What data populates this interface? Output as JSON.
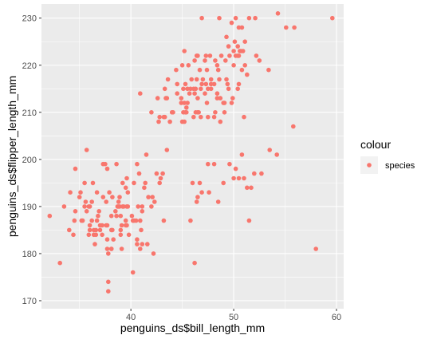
{
  "chart_data": {
    "type": "scatter",
    "xlabel": "penguins_ds$bill_length_mm",
    "ylabel": "penguins_ds$flipper_length_mm",
    "xlim": [
      31.3,
      60.7
    ],
    "ylim": [
      168.3,
      233.0
    ],
    "x_ticks": [
      "40",
      "50",
      "60"
    ],
    "y_ticks": [
      "170",
      "180",
      "190",
      "200",
      "210",
      "220",
      "230"
    ],
    "x_tick_values": [
      40,
      50,
      60
    ],
    "y_tick_values": [
      170,
      180,
      190,
      200,
      210,
      220,
      230
    ],
    "grid": true,
    "legend": {
      "title": "colour",
      "position": "right",
      "entries": [
        {
          "label": "species",
          "color": "#F8766D"
        }
      ]
    },
    "colors": {
      "panel": "#EBEBEB",
      "grid": "#FFFFFF",
      "point": "#F8766D"
    },
    "points": [
      [
        32.1,
        188
      ],
      [
        33.1,
        178
      ],
      [
        33.5,
        190
      ],
      [
        34.0,
        185
      ],
      [
        34.1,
        193
      ],
      [
        34.4,
        184
      ],
      [
        34.5,
        187
      ],
      [
        34.6,
        198
      ],
      [
        34.6,
        189
      ],
      [
        35.0,
        192
      ],
      [
        35.1,
        193
      ],
      [
        35.2,
        187
      ],
      [
        35.3,
        187
      ],
      [
        35.5,
        190
      ],
      [
        35.5,
        195
      ],
      [
        35.6,
        191
      ],
      [
        35.7,
        202
      ],
      [
        35.7,
        189
      ],
      [
        35.9,
        190
      ],
      [
        35.9,
        184
      ],
      [
        36.0,
        185
      ],
      [
        36.0,
        186
      ],
      [
        36.0,
        190
      ],
      [
        36.2,
        187
      ],
      [
        36.2,
        191
      ],
      [
        36.3,
        195
      ],
      [
        36.4,
        184
      ],
      [
        36.4,
        185
      ],
      [
        36.5,
        182
      ],
      [
        36.6,
        185
      ],
      [
        36.6,
        184
      ],
      [
        36.7,
        187
      ],
      [
        36.7,
        193
      ],
      [
        36.8,
        188
      ],
      [
        36.9,
        189
      ],
      [
        37.0,
        185
      ],
      [
        37.0,
        186
      ],
      [
        37.2,
        184
      ],
      [
        37.2,
        186
      ],
      [
        37.3,
        199
      ],
      [
        37.3,
        192
      ],
      [
        37.5,
        199
      ],
      [
        37.6,
        191
      ],
      [
        37.6,
        186
      ],
      [
        37.7,
        198
      ],
      [
        37.7,
        183
      ],
      [
        37.7,
        181
      ],
      [
        37.7,
        186
      ],
      [
        37.8,
        174
      ],
      [
        37.8,
        180
      ],
      [
        37.8,
        172
      ],
      [
        37.9,
        193
      ],
      [
        38.1,
        181
      ],
      [
        38.1,
        185
      ],
      [
        38.1,
        188
      ],
      [
        38.1,
        181
      ],
      [
        38.2,
        185
      ],
      [
        38.2,
        192
      ],
      [
        38.3,
        183
      ],
      [
        38.5,
        189
      ],
      [
        38.6,
        188
      ],
      [
        38.6,
        199
      ],
      [
        38.7,
        190
      ],
      [
        38.8,
        190
      ],
      [
        38.8,
        191
      ],
      [
        38.9,
        192
      ],
      [
        38.9,
        190
      ],
      [
        39.0,
        185
      ],
      [
        39.0,
        188
      ],
      [
        39.0,
        184
      ],
      [
        39.1,
        181
      ],
      [
        39.1,
        186
      ],
      [
        39.2,
        190
      ],
      [
        39.2,
        195
      ],
      [
        39.3,
        190
      ],
      [
        39.5,
        187
      ],
      [
        39.5,
        186
      ],
      [
        39.5,
        194
      ],
      [
        39.6,
        186
      ],
      [
        39.6,
        190
      ],
      [
        39.6,
        196
      ],
      [
        39.7,
        190
      ],
      [
        39.7,
        193
      ],
      [
        39.8,
        184
      ],
      [
        40.1,
        188
      ],
      [
        40.2,
        176
      ],
      [
        40.2,
        187
      ],
      [
        40.3,
        195
      ],
      [
        40.3,
        187
      ],
      [
        40.5,
        187
      ],
      [
        40.6,
        182
      ],
      [
        40.6,
        183
      ],
      [
        40.6,
        199
      ],
      [
        40.7,
        190
      ],
      [
        40.8,
        197
      ],
      [
        40.9,
        187
      ],
      [
        40.9,
        181
      ],
      [
        41.0,
        185
      ],
      [
        41.1,
        182
      ],
      [
        41.1,
        189
      ],
      [
        41.1,
        190
      ],
      [
        41.3,
        194
      ],
      [
        41.4,
        195
      ],
      [
        41.5,
        201
      ],
      [
        41.6,
        182
      ],
      [
        41.7,
        192
      ],
      [
        42.0,
        190
      ],
      [
        42.1,
        192
      ],
      [
        42.2,
        180
      ],
      [
        42.3,
        191
      ],
      [
        42.5,
        197
      ],
      [
        42.8,
        195
      ],
      [
        42.9,
        196
      ],
      [
        43.1,
        197
      ],
      [
        43.2,
        187
      ],
      [
        43.5,
        202
      ],
      [
        44.1,
        210
      ],
      [
        45.8,
        187
      ],
      [
        46.0,
        195
      ],
      [
        46.2,
        178
      ],
      [
        46.4,
        191
      ],
      [
        46.5,
        192
      ],
      [
        46.7,
        195
      ],
      [
        46.9,
        193
      ],
      [
        47.5,
        199
      ],
      [
        47.6,
        193
      ],
      [
        48.1,
        199
      ],
      [
        48.5,
        191
      ],
      [
        49.0,
        195
      ],
      [
        49.6,
        199
      ],
      [
        50.0,
        196
      ],
      [
        50.2,
        198
      ],
      [
        50.5,
        196
      ],
      [
        50.8,
        201
      ],
      [
        51.0,
        196
      ],
      [
        51.3,
        194
      ],
      [
        51.5,
        187
      ],
      [
        51.7,
        194
      ],
      [
        52.0,
        197
      ],
      [
        52.7,
        197
      ],
      [
        53.5,
        202
      ],
      [
        54.2,
        201
      ],
      [
        55.8,
        207
      ],
      [
        58.0,
        181
      ],
      [
        40.9,
        214
      ],
      [
        42.0,
        210
      ],
      [
        42.7,
        208
      ],
      [
        42.8,
        209
      ],
      [
        43.2,
        209
      ],
      [
        43.3,
        209
      ],
      [
        43.4,
        213
      ],
      [
        43.5,
        213
      ],
      [
        43.8,
        208
      ],
      [
        44.0,
        210
      ],
      [
        44.4,
        219
      ],
      [
        44.5,
        214
      ],
      [
        45.1,
        215
      ],
      [
        45.2,
        212
      ],
      [
        45.3,
        210
      ],
      [
        45.4,
        211
      ],
      [
        45.5,
        212
      ],
      [
        45.8,
        215
      ],
      [
        46.1,
        209
      ],
      [
        46.2,
        214
      ],
      [
        46.3,
        210
      ],
      [
        46.4,
        217
      ],
      [
        46.5,
        210
      ],
      [
        46.8,
        215
      ],
      [
        47.2,
        214
      ],
      [
        47.3,
        216
      ],
      [
        47.5,
        215
      ],
      [
        48.2,
        210
      ],
      [
        48.4,
        213
      ],
      [
        48.7,
        208
      ],
      [
        49.1,
        210
      ],
      [
        49.3,
        217
      ],
      [
        49.5,
        215
      ],
      [
        49.9,
        213
      ],
      [
        50.0,
        220
      ],
      [
        50.4,
        224
      ],
      [
        50.5,
        216
      ],
      [
        50.8,
        219
      ],
      [
        51.1,
        220
      ],
      [
        52.1,
        230
      ],
      [
        52.5,
        221
      ],
      [
        53.4,
        219
      ],
      [
        55.1,
        228
      ],
      [
        59.6,
        230
      ],
      [
        45.6,
        220
      ],
      [
        46.9,
        216
      ],
      [
        47.8,
        215
      ],
      [
        48.6,
        230
      ],
      [
        49.2,
        221
      ],
      [
        49.8,
        229
      ],
      [
        50.2,
        230
      ],
      [
        50.5,
        228
      ],
      [
        50.7,
        223
      ],
      [
        51.5,
        230
      ],
      [
        54.3,
        231
      ],
      [
        55.9,
        228
      ],
      [
        44.9,
        212
      ],
      [
        45.0,
        220
      ],
      [
        45.7,
        214
      ],
      [
        46.6,
        210
      ],
      [
        47.0,
        217
      ],
      [
        47.7,
        222
      ],
      [
        48.1,
        216
      ],
      [
        48.8,
        222
      ],
      [
        49.4,
        216
      ],
      [
        50.1,
        225
      ],
      [
        42.6,
        213
      ],
      [
        43.6,
        217
      ],
      [
        44.9,
        213
      ],
      [
        45.5,
        215
      ],
      [
        46.7,
        219
      ],
      [
        47.4,
        212
      ],
      [
        48.4,
        214
      ],
      [
        49.0,
        212
      ],
      [
        49.6,
        222
      ],
      [
        50.0,
        223
      ],
      [
        51.3,
        218
      ],
      [
        45.3,
        216
      ],
      [
        46.2,
        221
      ],
      [
        47.3,
        222
      ],
      [
        48.5,
        219
      ],
      [
        49.5,
        224
      ],
      [
        50.5,
        222
      ],
      [
        44.5,
        216
      ],
      [
        46.4,
        222
      ],
      [
        48.2,
        221
      ],
      [
        49.1,
        212
      ],
      [
        50.4,
        222
      ],
      [
        51.1,
        225
      ],
      [
        43.3,
        215
      ],
      [
        45.2,
        223
      ],
      [
        46.8,
        209
      ],
      [
        47.5,
        209
      ],
      [
        46.1,
        215
      ],
      [
        48.4,
        220
      ],
      [
        49.8,
        212
      ],
      [
        50.8,
        228
      ],
      [
        45.2,
        208
      ],
      [
        47.2,
        221
      ],
      [
        46.5,
        222
      ],
      [
        45.4,
        210
      ],
      [
        50.6,
        223
      ],
      [
        48.7,
        213
      ],
      [
        45.1,
        210
      ],
      [
        46.5,
        213
      ],
      [
        47.8,
        216
      ],
      [
        50.4,
        215
      ],
      [
        46.9,
        230
      ],
      [
        48.1,
        209
      ],
      [
        45.9,
        217
      ],
      [
        47.4,
        219
      ],
      [
        45.0,
        208
      ],
      [
        51.0,
        209
      ],
      [
        46.3,
        215
      ],
      [
        47.8,
        217
      ],
      [
        49.3,
        226
      ],
      [
        50.2,
        222
      ],
      [
        48.6,
        217
      ],
      [
        50.9,
        223
      ],
      [
        52.2,
        222
      ]
    ]
  }
}
